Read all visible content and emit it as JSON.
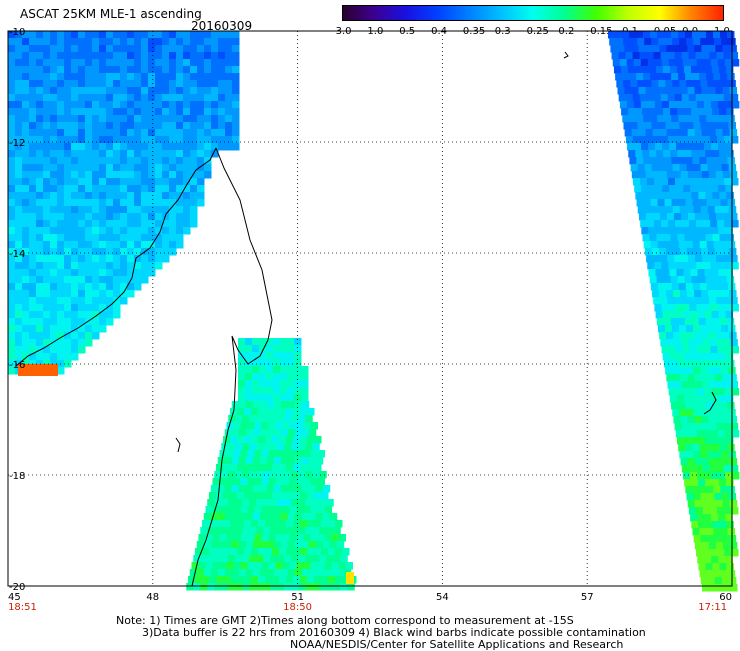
{
  "header": {
    "title": "ASCAT 25KM MLE-1 ascending",
    "date": "20160309"
  },
  "colorbar": {
    "labels": [
      "-3.0",
      "-1.0",
      "-0.5",
      "-0.4",
      "-0.35",
      "-0.3",
      "-0.25",
      "-0.2",
      "-0.15",
      "-0.1",
      "-0.05",
      "0.0",
      "1.0"
    ],
    "colors": [
      "#2a002a",
      "#3b0090",
      "#1a10e0",
      "#0040ff",
      "#0080ff",
      "#00c0ff",
      "#00ffee",
      "#00ff90",
      "#40ff00",
      "#c0ff00",
      "#ffff00",
      "#ff8000",
      "#ff2000"
    ]
  },
  "chart_data": {
    "type": "heatmap",
    "title": "ASCAT 25KM MLE-1 ascending",
    "date": "20160309",
    "x_ticks": [
      "45",
      "48",
      "51",
      "54",
      "57",
      "60"
    ],
    "x_values": [
      45,
      48,
      51,
      54,
      57,
      60
    ],
    "y_ticks": [
      "-10",
      "-12",
      "-14",
      "-16",
      "-18",
      "-20"
    ],
    "y_values": [
      -10,
      -12,
      -14,
      -16,
      -18,
      -20
    ],
    "xlim": [
      45,
      60
    ],
    "ylim": [
      -20,
      -10
    ],
    "grid": true,
    "swath_times": [
      {
        "label": "18:51",
        "lon": 45.3
      },
      {
        "label": "18:50",
        "lon": 51.0
      },
      {
        "label": "17:11",
        "lon": 59.6
      }
    ]
  },
  "notes": {
    "line1": "Note: 1) Times are GMT 2)Times along bottom correspond to measurement at -15S",
    "line2": "3)Data buffer is 22 hrs from 20160309 4) Black wind barbs indicate possible contamination",
    "line3": "NOAA/NESDIS/Center for Satellite Applications and Research"
  }
}
